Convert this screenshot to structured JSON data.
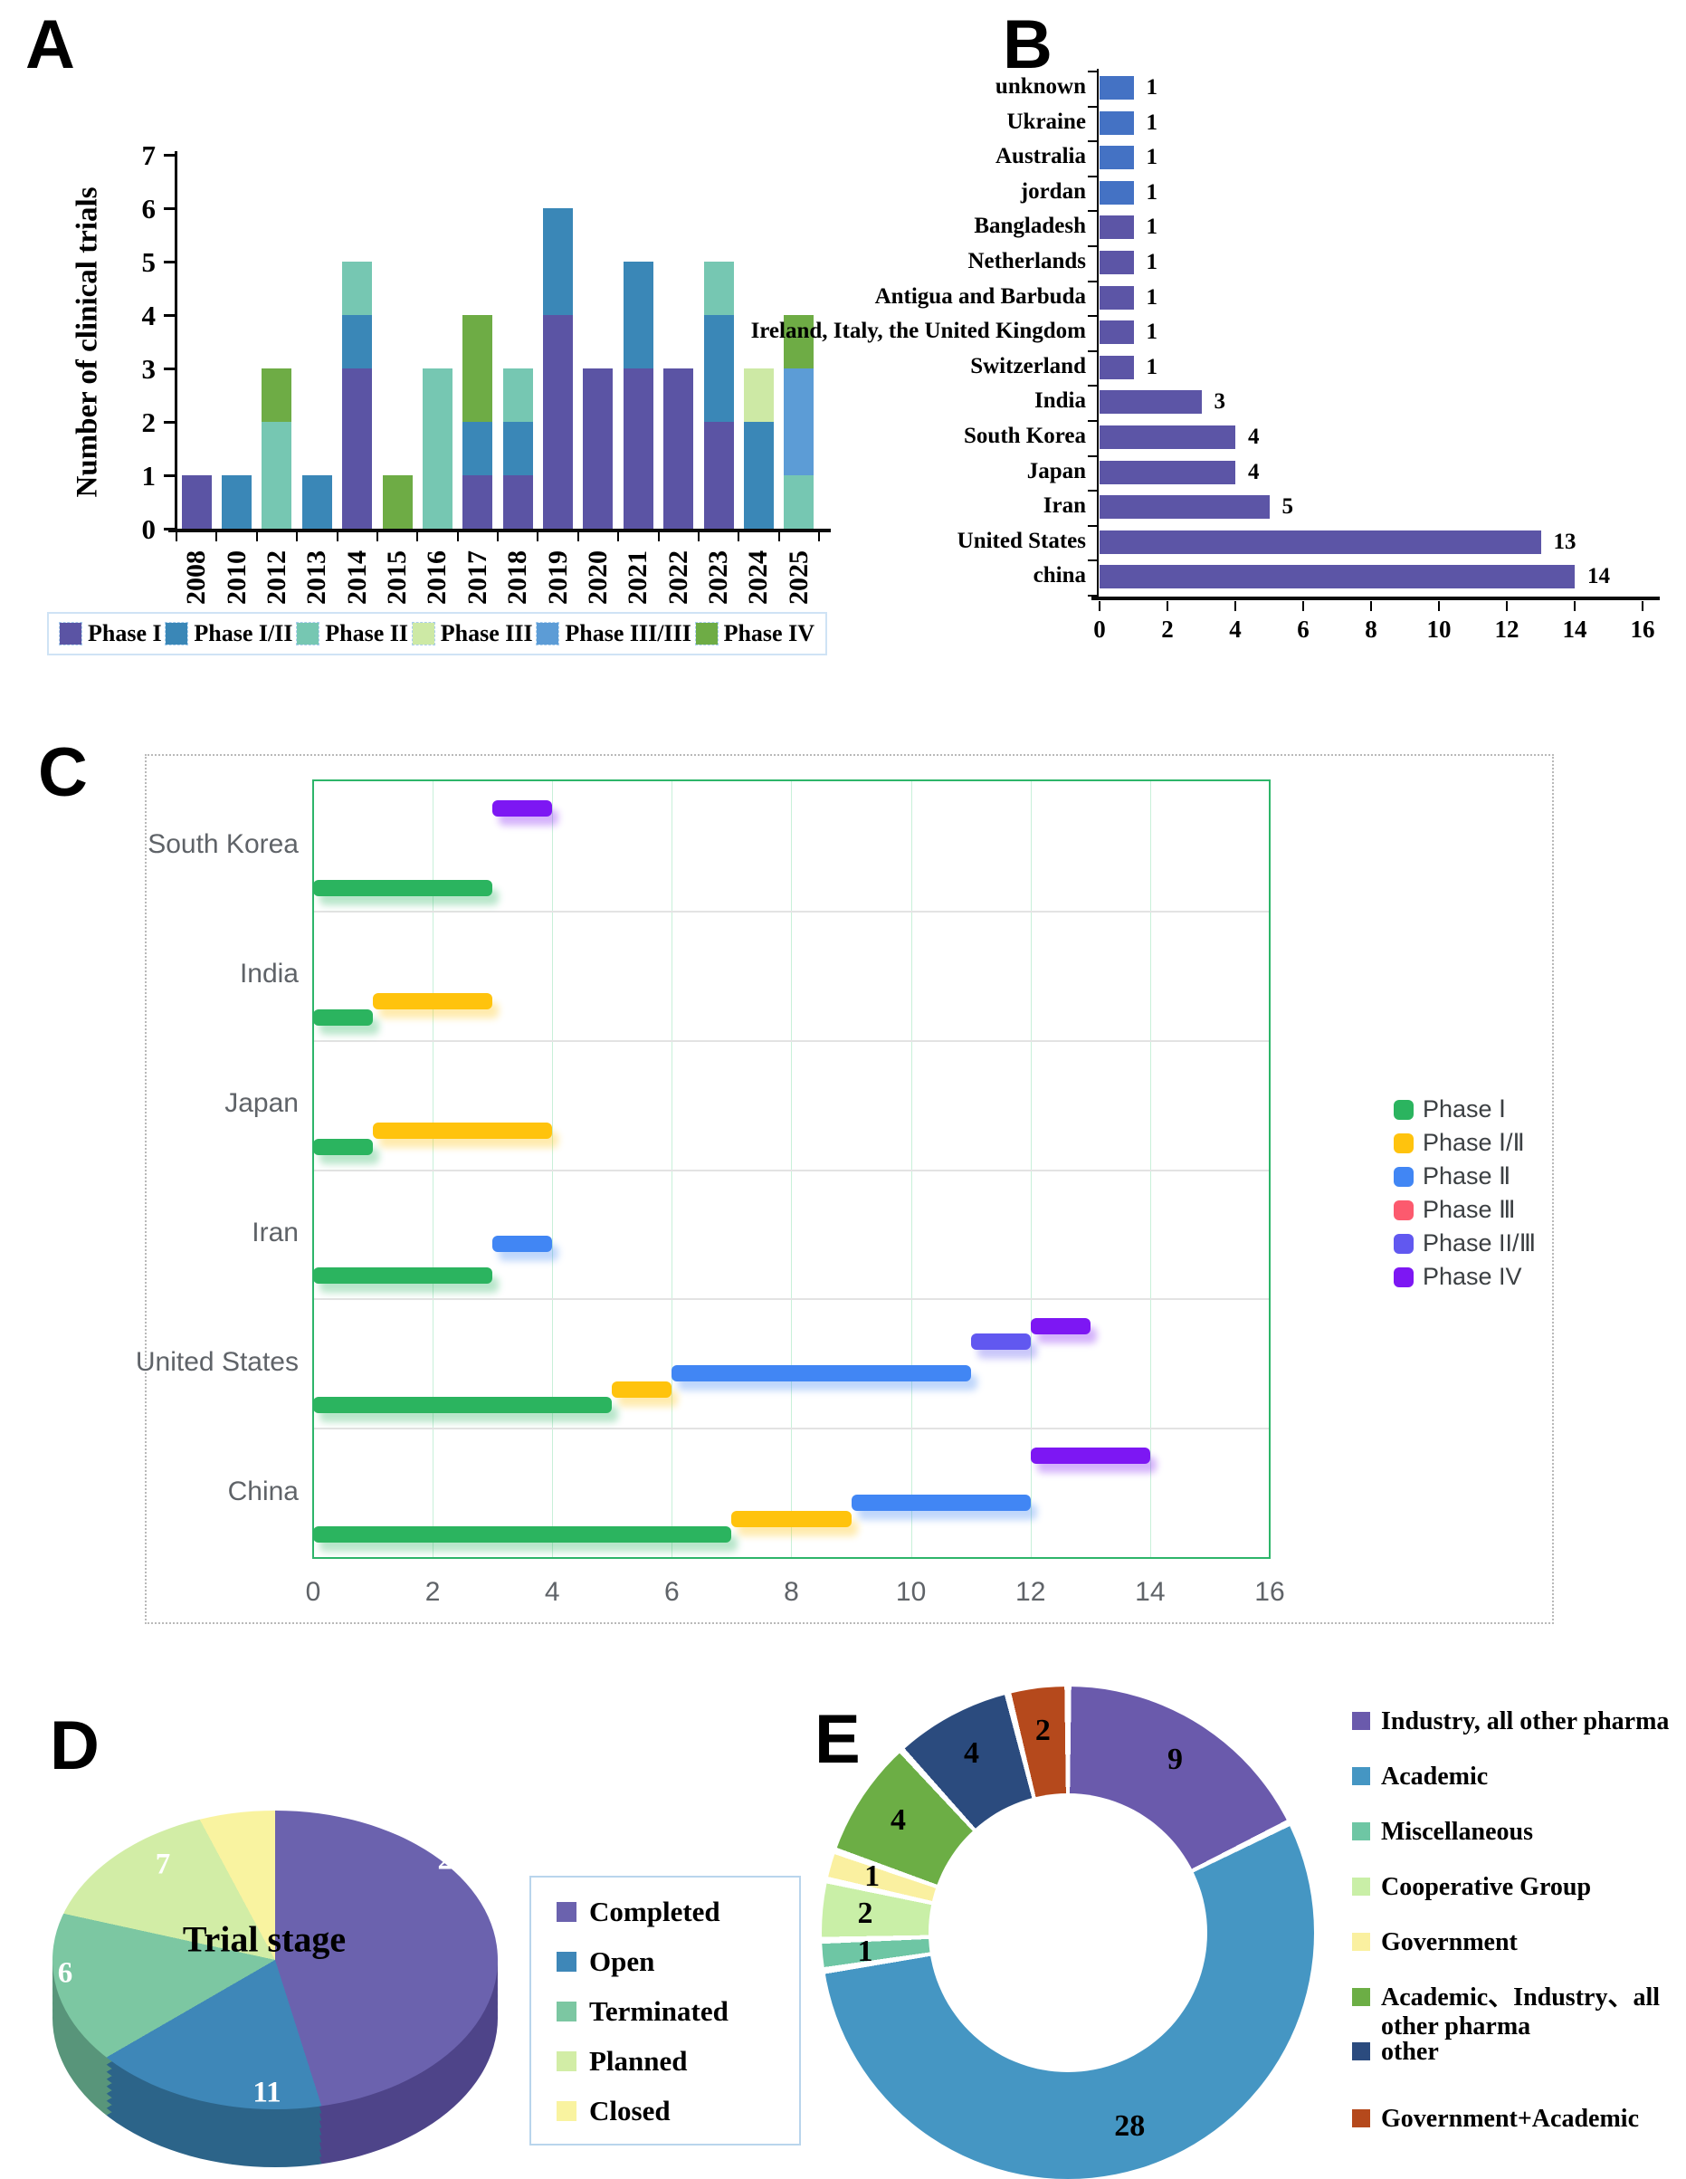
{
  "panel_a": {
    "label": "A",
    "y_axis_title": "Number of clinical trials",
    "y_ticks": [
      0,
      1,
      2,
      3,
      4,
      5,
      6,
      7
    ],
    "legend": [
      "Phase I",
      "Phase I/II",
      "Phase II",
      "Phase III",
      "Phase III/III",
      "Phase IV"
    ],
    "phase_colors": {
      "Phase I": "#5b54a4",
      "Phase I/II": "#3a87b7",
      "Phase II": "#76c7b2",
      "Phase III": "#cde9a5",
      "Phase III/III": "#5c9cd6",
      "Phase IV": "#6eac45"
    }
  },
  "panel_b": {
    "label": "B",
    "bar_color_blue": "#4472c4",
    "bar_color_purple": "#5c55a6",
    "x_ticks": [
      0,
      2,
      4,
      6,
      8,
      10,
      12,
      14,
      16
    ]
  },
  "panel_c": {
    "label": "C",
    "text_color": "#5f6368",
    "border_color": "#2eb56a",
    "grid_color": "#c8f0d9",
    "x_ticks": [
      0,
      2,
      4,
      6,
      8,
      10,
      12,
      14,
      16
    ],
    "legend": [
      "Phase Ⅰ",
      "Phase Ⅰ/Ⅱ",
      "Phase Ⅱ",
      "Phase Ⅲ",
      "Phase II/Ⅲ",
      "Phase IV"
    ],
    "phase_colors": {
      "Phase Ⅰ": "#2bb45f",
      "Phase Ⅰ/Ⅱ": "#ffc30d",
      "Phase Ⅱ": "#4186f4",
      "Phase Ⅲ": "#fc5a6e",
      "Phase II/Ⅲ": "#6158f0",
      "Phase IV": "#7d17f3"
    },
    "phase_index": {
      "Phase Ⅰ": 0,
      "Phase Ⅰ/Ⅱ": 1,
      "Phase Ⅱ": 2,
      "Phase Ⅲ": 3,
      "Phase II/Ⅲ": 4,
      "Phase IV": 5
    }
  },
  "panel_d": {
    "label": "D",
    "title": "Trial stage",
    "legend": [
      "Completed",
      "Open",
      "Terminated",
      "Planned",
      "Closed"
    ],
    "colors": [
      "#6b62ae",
      "#3e87b8",
      "#7cc7a2",
      "#d2eda6",
      "#f9f3a0"
    ],
    "side_colors": [
      "#4e4489",
      "#2c6489",
      "#58957a",
      "#a3c07e",
      "#c8c27c"
    ],
    "value_color": "#ffffff"
  },
  "panel_e": {
    "label": "E",
    "legend": [
      "Industry, all other pharma",
      "Academic",
      "Miscellaneous",
      "Cooperative Group",
      "Government",
      "Academic、Industry、all other pharma",
      "other",
      "Government+Academic"
    ],
    "colors": [
      "#6a5aac",
      "#4596c3",
      "#6ec6a4",
      "#c9efa7",
      "#faf0a0",
      "#6cae45",
      "#2b4b7e",
      "#b5491c"
    ]
  },
  "chart_data": [
    {
      "id": "A",
      "type": "bar",
      "stacked": true,
      "title": "",
      "ylabel": "Number of clinical trials",
      "ylim": [
        0,
        7
      ],
      "legend_position": "bottom",
      "categories": [
        "2008",
        "2010",
        "2012",
        "2013",
        "2014",
        "2015",
        "2016",
        "2017",
        "2018",
        "2019",
        "2020",
        "2021",
        "2022",
        "2023",
        "2024",
        "2025"
      ],
      "series": [
        {
          "name": "Phase I",
          "values": [
            1,
            0,
            0,
            0,
            3,
            0,
            0,
            1,
            1,
            4,
            3,
            3,
            3,
            2,
            0,
            0
          ]
        },
        {
          "name": "Phase I/II",
          "values": [
            0,
            1,
            0,
            1,
            1,
            0,
            0,
            1,
            1,
            2,
            0,
            2,
            0,
            2,
            2,
            0
          ]
        },
        {
          "name": "Phase II",
          "values": [
            0,
            0,
            2,
            0,
            1,
            0,
            3,
            0,
            1,
            0,
            0,
            0,
            0,
            1,
            0,
            1
          ]
        },
        {
          "name": "Phase III",
          "values": [
            0,
            0,
            0,
            0,
            0,
            0,
            0,
            0,
            0,
            0,
            0,
            0,
            0,
            0,
            1,
            0
          ]
        },
        {
          "name": "Phase III/III",
          "values": [
            0,
            0,
            0,
            0,
            0,
            0,
            0,
            0,
            0,
            0,
            0,
            0,
            0,
            0,
            0,
            2
          ]
        },
        {
          "name": "Phase IV",
          "values": [
            0,
            0,
            1,
            0,
            0,
            1,
            0,
            2,
            0,
            0,
            0,
            0,
            0,
            0,
            0,
            1
          ]
        }
      ]
    },
    {
      "id": "B",
      "type": "bar",
      "orientation": "horizontal",
      "xlim": [
        0,
        16
      ],
      "xticks": [
        0,
        2,
        4,
        6,
        8,
        10,
        12,
        14,
        16
      ],
      "categories": [
        "unknown",
        "Ukraine",
        "Australia",
        "jordan",
        "Bangladesh",
        "Netherlands",
        "Antigua and Barbuda",
        "Ireland, Italy, the United Kingdom",
        "Switzerland",
        "India",
        "South Korea",
        "Japan",
        "Iran",
        "United States",
        "china"
      ],
      "values": [
        1,
        1,
        1,
        1,
        1,
        1,
        1,
        1,
        1,
        3,
        4,
        4,
        5,
        13,
        14
      ]
    },
    {
      "id": "C",
      "type": "gantt",
      "xlim": [
        0,
        16
      ],
      "xticks": [
        0,
        2,
        4,
        6,
        8,
        10,
        12,
        14,
        16
      ],
      "countries": [
        {
          "name": "South Korea",
          "bars": [
            {
              "phase": "Phase Ⅰ",
              "start": 0,
              "end": 3
            },
            {
              "phase": "Phase IV",
              "start": 3,
              "end": 4
            }
          ]
        },
        {
          "name": "India",
          "bars": [
            {
              "phase": "Phase Ⅰ",
              "start": 0,
              "end": 1
            },
            {
              "phase": "Phase Ⅰ/Ⅱ",
              "start": 1,
              "end": 3
            }
          ]
        },
        {
          "name": "Japan",
          "bars": [
            {
              "phase": "Phase Ⅰ",
              "start": 0,
              "end": 1
            },
            {
              "phase": "Phase Ⅰ/Ⅱ",
              "start": 1,
              "end": 4
            }
          ]
        },
        {
          "name": "Iran",
          "bars": [
            {
              "phase": "Phase Ⅰ",
              "start": 0,
              "end": 3
            },
            {
              "phase": "Phase Ⅱ",
              "start": 3,
              "end": 4
            }
          ]
        },
        {
          "name": "United States",
          "bars": [
            {
              "phase": "Phase Ⅰ",
              "start": 0,
              "end": 5
            },
            {
              "phase": "Phase Ⅰ/Ⅱ",
              "start": 5,
              "end": 6
            },
            {
              "phase": "Phase Ⅱ",
              "start": 6,
              "end": 11
            },
            {
              "phase": "Phase II/Ⅲ",
              "start": 11,
              "end": 12
            },
            {
              "phase": "Phase IV",
              "start": 12,
              "end": 13
            }
          ]
        },
        {
          "name": "China",
          "bars": [
            {
              "phase": "Phase Ⅰ",
              "start": 0,
              "end": 7
            },
            {
              "phase": "Phase Ⅰ/Ⅱ",
              "start": 7,
              "end": 9
            },
            {
              "phase": "Phase Ⅱ",
              "start": 9,
              "end": 12
            },
            {
              "phase": "Phase IV",
              "start": 12,
              "end": 14
            }
          ]
        }
      ]
    },
    {
      "id": "D",
      "type": "pie",
      "title": "Trial stage",
      "labels": [
        "Completed",
        "Open",
        "Terminated",
        "Planned",
        "Closed"
      ],
      "values": [
        23,
        11,
        6,
        7,
        4
      ]
    },
    {
      "id": "E",
      "type": "donut",
      "labels": [
        "Industry, all other pharma",
        "Academic",
        "Miscellaneous",
        "Cooperative Group",
        "Government",
        "Academic、Industry、all other pharma",
        "other",
        "Government+Academic"
      ],
      "values": [
        9,
        28,
        1,
        2,
        1,
        4,
        4,
        2
      ]
    }
  ]
}
